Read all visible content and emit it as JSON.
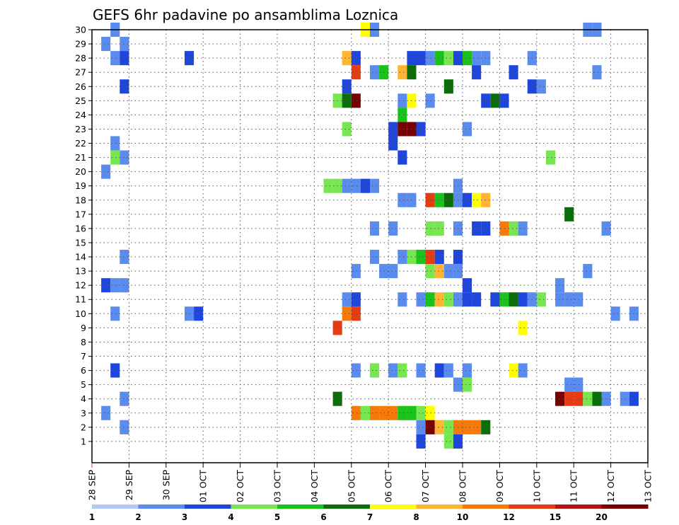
{
  "chart_data": {
    "type": "heatmap",
    "title": "GEFS 6hr padavine po ansamblima Loznica",
    "x_tick_labels": [
      "28 SEP",
      "29 SEP",
      "30 SEP",
      "01 OCT",
      "02 OCT",
      "03 OCT",
      "04 OCT",
      "05 OCT",
      "06 OCT",
      "07 OCT",
      "08 OCT",
      "09 OCT",
      "10 OCT",
      "11 OCT",
      "12 OCT",
      "13 OCT"
    ],
    "y_tick_labels": [
      "1",
      "2",
      "3",
      "4",
      "5",
      "6",
      "7",
      "8",
      "9",
      "10",
      "11",
      "12",
      "13",
      "14",
      "15",
      "16",
      "17",
      "18",
      "19",
      "20",
      "21",
      "22",
      "23",
      "24",
      "25",
      "26",
      "27",
      "28",
      "29",
      "30"
    ],
    "colorbar": {
      "labels": [
        "1",
        "2",
        "3",
        "4",
        "5",
        "6",
        "7",
        "8",
        "10",
        "12",
        "15",
        "20"
      ],
      "colors": [
        "#b4c8f5",
        "#5a8cf0",
        "#1e46dc",
        "#78e650",
        "#19c319",
        "#0b6e0b",
        "#ffff00",
        "#ffb432",
        "#f57a0a",
        "#e63c14",
        "#b41414",
        "#780000"
      ]
    },
    "x_unit_per_day": 4,
    "ensemble_members": 30,
    "cells": [
      [
        2,
        30,
        1
      ],
      [
        29,
        30,
        6
      ],
      [
        30,
        30,
        1
      ],
      [
        53,
        30,
        1
      ],
      [
        54,
        30,
        1
      ],
      [
        1,
        29,
        1
      ],
      [
        3,
        29,
        1
      ],
      [
        2,
        28,
        1
      ],
      [
        3,
        28,
        2
      ],
      [
        10,
        28,
        2
      ],
      [
        27,
        28,
        7
      ],
      [
        28,
        28,
        2
      ],
      [
        34,
        28,
        2
      ],
      [
        35,
        28,
        2
      ],
      [
        36,
        28,
        1
      ],
      [
        37,
        28,
        4
      ],
      [
        38,
        28,
        3
      ],
      [
        39,
        28,
        2
      ],
      [
        40,
        28,
        4
      ],
      [
        41,
        28,
        1
      ],
      [
        42,
        28,
        1
      ],
      [
        47,
        28,
        1
      ],
      [
        28,
        27,
        9
      ],
      [
        30,
        27,
        1
      ],
      [
        31,
        27,
        4
      ],
      [
        33,
        27,
        7
      ],
      [
        34,
        27,
        5
      ],
      [
        41,
        27,
        2
      ],
      [
        45,
        27,
        2
      ],
      [
        54,
        27,
        1
      ],
      [
        3,
        26,
        2
      ],
      [
        27,
        26,
        2
      ],
      [
        38,
        26,
        5
      ],
      [
        47,
        26,
        2
      ],
      [
        48,
        26,
        1
      ],
      [
        26,
        25,
        3
      ],
      [
        27,
        25,
        5
      ],
      [
        28,
        25,
        11
      ],
      [
        33,
        25,
        1
      ],
      [
        34,
        25,
        6
      ],
      [
        36,
        25,
        1
      ],
      [
        42,
        25,
        2
      ],
      [
        43,
        25,
        5
      ],
      [
        44,
        25,
        2
      ],
      [
        33,
        24,
        4
      ],
      [
        27,
        23,
        3
      ],
      [
        32,
        23,
        2
      ],
      [
        33,
        23,
        11
      ],
      [
        34,
        23,
        11
      ],
      [
        35,
        23,
        2
      ],
      [
        40,
        23,
        1
      ],
      [
        2,
        22,
        1
      ],
      [
        32,
        22,
        2
      ],
      [
        2,
        21,
        3
      ],
      [
        3,
        21,
        1
      ],
      [
        33,
        21,
        2
      ],
      [
        49,
        21,
        3
      ],
      [
        1,
        20,
        1
      ],
      [
        25,
        19,
        3
      ],
      [
        26,
        19,
        3
      ],
      [
        27,
        19,
        1
      ],
      [
        28,
        19,
        1
      ],
      [
        29,
        19,
        2
      ],
      [
        30,
        19,
        1
      ],
      [
        39,
        19,
        1
      ],
      [
        33,
        18,
        1
      ],
      [
        34,
        18,
        1
      ],
      [
        36,
        18,
        9
      ],
      [
        37,
        18,
        4
      ],
      [
        38,
        18,
        5
      ],
      [
        39,
        18,
        1
      ],
      [
        40,
        18,
        2
      ],
      [
        41,
        18,
        6
      ],
      [
        42,
        18,
        7
      ],
      [
        51,
        17,
        5
      ],
      [
        30,
        16,
        1
      ],
      [
        32,
        16,
        1
      ],
      [
        36,
        16,
        3
      ],
      [
        37,
        16,
        3
      ],
      [
        39,
        16,
        1
      ],
      [
        41,
        16,
        2
      ],
      [
        42,
        16,
        2
      ],
      [
        44,
        16,
        8
      ],
      [
        45,
        16,
        3
      ],
      [
        46,
        16,
        1
      ],
      [
        55,
        16,
        1
      ],
      [
        3,
        14,
        1
      ],
      [
        30,
        14,
        1
      ],
      [
        33,
        14,
        1
      ],
      [
        34,
        14,
        3
      ],
      [
        35,
        14,
        4
      ],
      [
        36,
        14,
        9
      ],
      [
        37,
        14,
        2
      ],
      [
        39,
        14,
        2
      ],
      [
        28,
        13,
        1
      ],
      [
        31,
        13,
        1
      ],
      [
        32,
        13,
        1
      ],
      [
        36,
        13,
        3
      ],
      [
        37,
        13,
        7
      ],
      [
        38,
        13,
        1
      ],
      [
        39,
        13,
        1
      ],
      [
        53,
        13,
        1
      ],
      [
        1,
        12,
        2
      ],
      [
        2,
        12,
        1
      ],
      [
        3,
        12,
        1
      ],
      [
        40,
        12,
        2
      ],
      [
        50,
        12,
        1
      ],
      [
        27,
        11,
        1
      ],
      [
        28,
        11,
        2
      ],
      [
        33,
        11,
        1
      ],
      [
        35,
        11,
        1
      ],
      [
        36,
        11,
        4
      ],
      [
        37,
        11,
        7
      ],
      [
        38,
        11,
        3
      ],
      [
        39,
        11,
        1
      ],
      [
        40,
        11,
        2
      ],
      [
        41,
        11,
        2
      ],
      [
        43,
        11,
        2
      ],
      [
        44,
        11,
        4
      ],
      [
        45,
        11,
        5
      ],
      [
        46,
        11,
        2
      ],
      [
        47,
        11,
        1
      ],
      [
        48,
        11,
        3
      ],
      [
        50,
        11,
        1
      ],
      [
        51,
        11,
        1
      ],
      [
        52,
        11,
        1
      ],
      [
        2,
        10,
        1
      ],
      [
        10,
        10,
        1
      ],
      [
        11,
        10,
        2
      ],
      [
        27,
        10,
        8
      ],
      [
        28,
        10,
        9
      ],
      [
        56,
        10,
        1
      ],
      [
        58,
        10,
        1
      ],
      [
        26,
        9,
        9
      ],
      [
        46,
        9,
        6
      ],
      [
        2,
        6,
        2
      ],
      [
        28,
        6,
        1
      ],
      [
        30,
        6,
        3
      ],
      [
        32,
        6,
        1
      ],
      [
        33,
        6,
        3
      ],
      [
        35,
        6,
        1
      ],
      [
        37,
        6,
        2
      ],
      [
        38,
        6,
        1
      ],
      [
        40,
        6,
        1
      ],
      [
        45,
        6,
        6
      ],
      [
        46,
        6,
        1
      ],
      [
        39,
        5,
        1
      ],
      [
        40,
        5,
        3
      ],
      [
        51,
        5,
        1
      ],
      [
        52,
        5,
        1
      ],
      [
        3,
        4,
        1
      ],
      [
        26,
        4,
        5
      ],
      [
        50,
        4,
        11
      ],
      [
        51,
        4,
        9
      ],
      [
        52,
        4,
        9
      ],
      [
        53,
        4,
        3
      ],
      [
        54,
        4,
        5
      ],
      [
        55,
        4,
        1
      ],
      [
        57,
        4,
        1
      ],
      [
        58,
        4,
        2
      ],
      [
        1,
        3,
        1
      ],
      [
        28,
        3,
        8
      ],
      [
        29,
        3,
        3
      ],
      [
        30,
        3,
        8
      ],
      [
        31,
        3,
        8
      ],
      [
        32,
        3,
        8
      ],
      [
        33,
        3,
        4
      ],
      [
        34,
        3,
        4
      ],
      [
        35,
        3,
        3
      ],
      [
        36,
        3,
        6
      ],
      [
        3,
        2,
        1
      ],
      [
        35,
        2,
        1
      ],
      [
        36,
        2,
        11
      ],
      [
        37,
        2,
        7
      ],
      [
        38,
        2,
        3
      ],
      [
        39,
        2,
        8
      ],
      [
        40,
        2,
        8
      ],
      [
        41,
        2,
        8
      ],
      [
        42,
        2,
        5
      ],
      [
        35,
        1,
        2
      ],
      [
        38,
        1,
        3
      ],
      [
        39,
        1,
        2
      ]
    ]
  }
}
